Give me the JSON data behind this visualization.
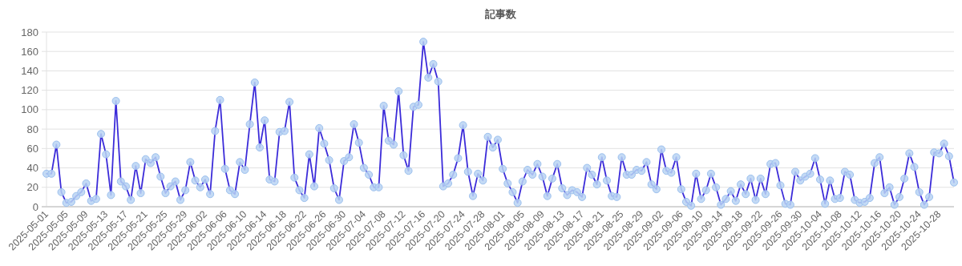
{
  "chart_data": {
    "type": "line",
    "title": "記事数",
    "categories": [
      "2025-05-01",
      null,
      null,
      null,
      "2025-05-05",
      null,
      null,
      null,
      "2025-05-09",
      null,
      null,
      null,
      "2025-05-13",
      null,
      null,
      null,
      "2025-05-17",
      null,
      null,
      null,
      "2025-05-21",
      null,
      null,
      null,
      "2025-05-25",
      null,
      null,
      null,
      "2025-05-29",
      null,
      null,
      null,
      "2025-06-02",
      null,
      null,
      null,
      "2025-06-06",
      null,
      null,
      null,
      "2025-06-10",
      null,
      null,
      null,
      "2025-06-14",
      null,
      null,
      null,
      "2025-06-18",
      null,
      null,
      null,
      "2025-06-22",
      null,
      null,
      null,
      "2025-06-26",
      null,
      null,
      null,
      "2025-06-30",
      null,
      null,
      null,
      "2025-07-04",
      null,
      null,
      null,
      "2025-07-08",
      null,
      null,
      null,
      "2025-07-12",
      null,
      null,
      null,
      "2025-07-16",
      null,
      null,
      null,
      "2025-07-20",
      null,
      null,
      null,
      "2025-07-24",
      null,
      null,
      null,
      "2025-07-28",
      null,
      null,
      null,
      "2025-08-01",
      null,
      null,
      null,
      "2025-08-05",
      null,
      null,
      null,
      "2025-08-09",
      null,
      null,
      null,
      "2025-08-13",
      null,
      null,
      null,
      "2025-08-17",
      null,
      null,
      null,
      "2025-08-21",
      null,
      null,
      null,
      "2025-08-25",
      null,
      null,
      null,
      "2025-08-29",
      null,
      null,
      null,
      "2025-09-02",
      null,
      null,
      null,
      "2025-09-06",
      null,
      null,
      null,
      "2025-09-10",
      null,
      null,
      null,
      "2025-09-14",
      null,
      null,
      null,
      "2025-09-18",
      null,
      null,
      null,
      "2025-09-22",
      null,
      null,
      null,
      "2025-09-26",
      null,
      null,
      null,
      "2025-09-30",
      null,
      null,
      null,
      "2025-10-04",
      null,
      null,
      null,
      "2025-10-08",
      null,
      null,
      null,
      "2025-10-12",
      null,
      null,
      null,
      "2025-10-16",
      null,
      null,
      null,
      "2025-10-20",
      null,
      null,
      null,
      "2025-10-24",
      null,
      null,
      null,
      "2025-10-28",
      null,
      null,
      null
    ],
    "series": [
      {
        "color": "#3b2bd9",
        "values": [
          34,
          34,
          64,
          15,
          4,
          5,
          11,
          15,
          24,
          6,
          8,
          75,
          54,
          12,
          109,
          26,
          21,
          7,
          42,
          14,
          49,
          45,
          51,
          31,
          14,
          21,
          26,
          7,
          17,
          46,
          27,
          20,
          28,
          13,
          78,
          110,
          39,
          17,
          13,
          46,
          38,
          85,
          128,
          61,
          89,
          28,
          26,
          77,
          78,
          108,
          30,
          17,
          9,
          54,
          21,
          81,
          65,
          48,
          19,
          7,
          47,
          51,
          85,
          66,
          40,
          33,
          20,
          20,
          104,
          68,
          64,
          119,
          53,
          37,
          103,
          105,
          170,
          133,
          147,
          129,
          21,
          24,
          33,
          50,
          84,
          36,
          11,
          34,
          27,
          72,
          61,
          69,
          39,
          24,
          15,
          4,
          26,
          38,
          33,
          44,
          31,
          11,
          29,
          44,
          19,
          12,
          17,
          15,
          10,
          40,
          33,
          23,
          51,
          27,
          11,
          10,
          51,
          33,
          33,
          38,
          37,
          46,
          23,
          18,
          59,
          37,
          35,
          51,
          18,
          5,
          1,
          34,
          8,
          17,
          34,
          20,
          2,
          8,
          16,
          6,
          23,
          13,
          29,
          7,
          29,
          13,
          44,
          45,
          22,
          3,
          2,
          36,
          27,
          31,
          34,
          50,
          28,
          3,
          27,
          8,
          9,
          36,
          33,
          7,
          4,
          5,
          9,
          45,
          51,
          14,
          20,
          2,
          10,
          29,
          55,
          41,
          15,
          2,
          10,
          56,
          55,
          65,
          52,
          25
        ]
      }
    ],
    "ylim": [
      0,
      180
    ],
    "yticks": [
      0,
      20,
      40,
      60,
      80,
      100,
      120,
      140,
      160,
      180
    ],
    "grid": "y",
    "marker": "circle",
    "line_style": "solid"
  }
}
